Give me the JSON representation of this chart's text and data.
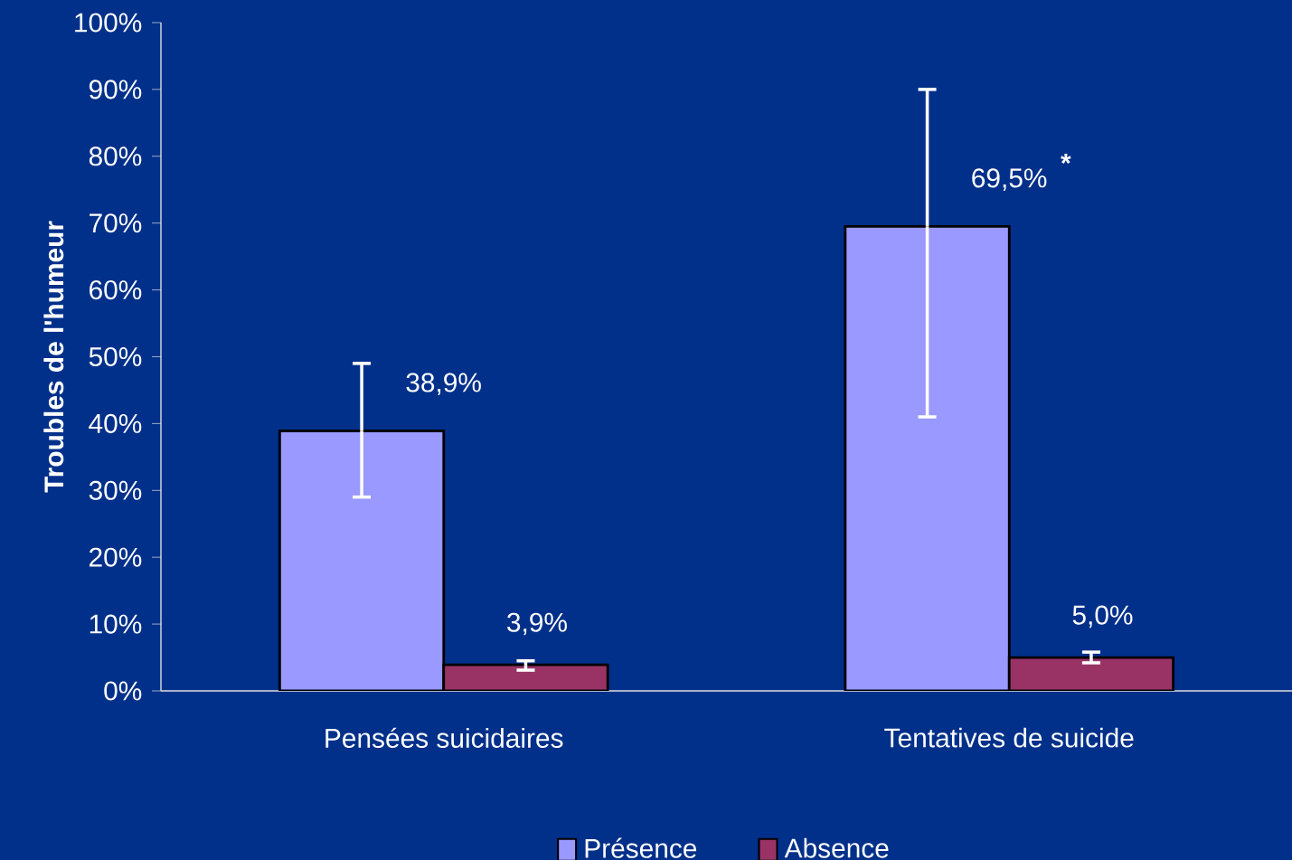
{
  "chart_data": {
    "type": "bar",
    "ylabel": "Troubles de l'humeur",
    "categories": [
      "Pensées suicidaires",
      "Tentatives de suicide"
    ],
    "series": [
      {
        "name": "Présence",
        "color": "#9999ff",
        "values": [
          38.9,
          69.5
        ],
        "errors": [
          [
            29,
            49
          ],
          [
            41,
            90
          ]
        ],
        "value_labels": [
          "38,9%",
          "69,5%"
        ]
      },
      {
        "name": "Absence",
        "color": "#993366",
        "values": [
          3.9,
          5.0
        ],
        "errors": [
          [
            3.1,
            4.5
          ],
          [
            4.2,
            5.8
          ]
        ],
        "value_labels": [
          "3,9%",
          "5,0%"
        ]
      }
    ],
    "ylim": [
      0,
      100
    ],
    "yticks": [
      {
        "value": 0,
        "label": "0%"
      },
      {
        "value": 10,
        "label": "10%"
      },
      {
        "value": 20,
        "label": "20%"
      },
      {
        "value": 30,
        "label": "30%"
      },
      {
        "value": 40,
        "label": "40%"
      },
      {
        "value": 50,
        "label": "50%"
      },
      {
        "value": 60,
        "label": "60%"
      },
      {
        "value": 70,
        "label": "70%"
      },
      {
        "value": 80,
        "label": "80%"
      },
      {
        "value": 90,
        "label": "90%"
      },
      {
        "value": 100,
        "label": "100%"
      }
    ],
    "annotations": [
      "*"
    ],
    "legend": "bottom",
    "grid": false
  }
}
